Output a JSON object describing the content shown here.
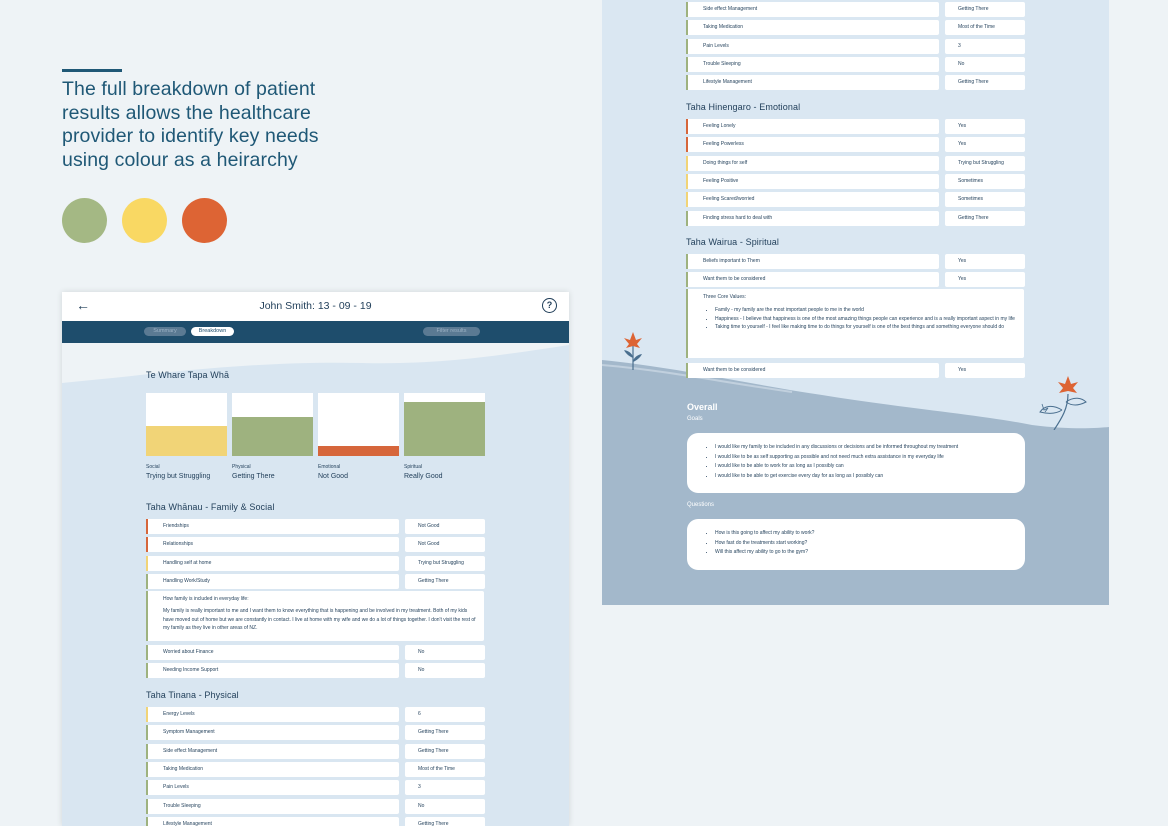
{
  "intro": {
    "headline": "The full breakdown of patient results allows the healthcare provider to identify key needs using colour as a heirarchy",
    "palette": [
      "#a4b884",
      "#f9d863",
      "#dd6434"
    ]
  },
  "colors": {
    "green": "#9eb27f",
    "yellow": "#f1d477",
    "red": "#d6663b",
    "navy": "#1e4d6c"
  },
  "left_screen": {
    "title": "John Smith: 13 - 09 - 19",
    "tabs": {
      "summary": "Summary",
      "breakdown": "Breakdown",
      "filter": "Filter results"
    },
    "overview": {
      "heading": "Te Whare Tapa Whā",
      "bars": [
        {
          "caption": "Social",
          "value": "Trying but Struggling",
          "level": 0.48,
          "color": "#f1d477"
        },
        {
          "caption": "Physical",
          "value": "Getting There",
          "level": 0.62,
          "color": "#9eb27f"
        },
        {
          "caption": "Emotional",
          "value": "Not Good",
          "level": 0.16,
          "color": "#d6663b"
        },
        {
          "caption": "Spiritual",
          "value": "Really Good",
          "level": 0.85,
          "color": "#9eb27f"
        }
      ]
    },
    "family": {
      "heading": "Taha Whānau - Family & Social",
      "rows": [
        {
          "q": "Friendships",
          "a": "Not Good",
          "flag": "#d6663b"
        },
        {
          "q": "Relationships",
          "a": "Not Good",
          "flag": "#d6663b"
        },
        {
          "q": "Handling self at home",
          "a": "Trying but Struggling",
          "flag": "#f1d477"
        },
        {
          "q": "Handling Work/Study",
          "a": "Getting There",
          "flag": "#9eb27f"
        }
      ],
      "included_label": "How family is included in everyday life:",
      "included_text": "My family is really important to me and I want them to know everything that is happening and be involved in my treatment. Both of my kids have moved out of home but we are constantly in contact. I live at home with my wife and we do a lot of things together. I don't visit the rest of my family as they live in other areas of NZ.",
      "rows2": [
        {
          "q": "Worried about Finance",
          "a": "No",
          "flag": "#9eb27f"
        },
        {
          "q": "Needing Income Support",
          "a": "No",
          "flag": "#9eb27f"
        }
      ]
    },
    "physical": {
      "heading": "Taha Tinana - Physical",
      "rows": [
        {
          "q": "Energy Levels",
          "a": "6",
          "flag": "#f1d477"
        },
        {
          "q": "Symptom Management",
          "a": "Getting There",
          "flag": "#9eb27f"
        },
        {
          "q": "Side effect Management",
          "a": "Getting There",
          "flag": "#9eb27f"
        },
        {
          "q": "Taking Medication",
          "a": "Most of the Time",
          "flag": "#9eb27f"
        },
        {
          "q": "Pain Levels",
          "a": "3",
          "flag": "#9eb27f"
        },
        {
          "q": "Trouble Sleeping",
          "a": "No",
          "flag": "#9eb27f"
        },
        {
          "q": "Lifestyle Management",
          "a": "Getting There",
          "flag": "#9eb27f"
        }
      ]
    }
  },
  "right_screen": {
    "top_rows": [
      {
        "q": "Side effect Management",
        "a": "Getting There",
        "flag": "#9eb27f"
      },
      {
        "q": "Taking Medication",
        "a": "Most of the Time",
        "flag": "#9eb27f"
      },
      {
        "q": "Pain Levels",
        "a": "3",
        "flag": "#9eb27f"
      },
      {
        "q": "Trouble Sleeping",
        "a": "No",
        "flag": "#9eb27f"
      },
      {
        "q": "Lifestyle Management",
        "a": "Getting There",
        "flag": "#9eb27f"
      }
    ],
    "emotional": {
      "heading": "Taha Hinengaro - Emotional",
      "rows": [
        {
          "q": "Feeling Lonely",
          "a": "Yes",
          "flag": "#d6663b"
        },
        {
          "q": "Feeling Powerless",
          "a": "Yes",
          "flag": "#d6663b"
        },
        {
          "q": "Doing things for self",
          "a": "Trying but Struggling",
          "flag": "#f1d477"
        },
        {
          "q": "Feeling Positive",
          "a": "Sometimes",
          "flag": "#f1d477"
        },
        {
          "q": "Feeling Scared/worried",
          "a": "Sometimes",
          "flag": "#f1d477"
        },
        {
          "q": "Finding stress hard to deal with",
          "a": "Getting There",
          "flag": "#9eb27f"
        }
      ]
    },
    "spiritual": {
      "heading": "Taha Wairua - Spiritual",
      "rows": [
        {
          "q": "Beliefs important to Them",
          "a": "Yes",
          "flag": "#9eb27f"
        },
        {
          "q": "Want them to be considered",
          "a": "Yes",
          "flag": "#9eb27f"
        }
      ],
      "values_label": "Three Core Values:",
      "values": [
        "Family - my family are the most important people to me in the world",
        "Happiness - I believe that happiness is one of the most amazing things people can experience and is a really important aspect in my life",
        "Taking time to yourself - I feel like making time to do things for yourself is one of the best things and something everyone should do"
      ],
      "last_row": {
        "q": "Want them to be considered",
        "a": "Yes",
        "flag": "#9eb27f"
      }
    },
    "overall": {
      "heading": "Overall",
      "goals_label": "Goals",
      "goals": [
        "I would like my family to be included in any discussions or decisions and be informed throughout my treatment",
        "I would like to be as self supporting as possible and not need much extra assistance in my everyday life",
        "I would like to be able to work for as long as I possibly can",
        "I would like to be able to get exercise every day for as long as I possibly can"
      ],
      "questions_label": "Questions",
      "questions": [
        "How is this going to affect my ability to work?",
        "How fast do the treatments start working?",
        "Will this affect my ability to go to the gym?"
      ]
    }
  }
}
